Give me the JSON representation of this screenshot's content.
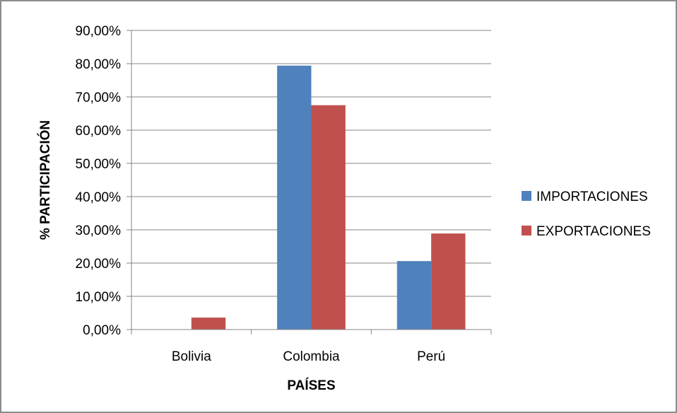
{
  "chart_data": {
    "type": "bar",
    "categories": [
      "Bolivia",
      "Colombia",
      "Perú"
    ],
    "series": [
      {
        "name": "IMPORTACIONES",
        "color": "#4f81bd",
        "values": [
          0,
          79.4,
          20.6
        ]
      },
      {
        "name": "EXPORTACIONES",
        "color": "#c0504d",
        "values": [
          3.6,
          67.5,
          28.9
        ]
      }
    ],
    "xlabel": "PAÍSES",
    "ylabel": "% PARTICIPACIÓN",
    "ylim": [
      0,
      90
    ],
    "yticks": [
      "0,00%",
      "10,00%",
      "20,00%",
      "30,00%",
      "40,00%",
      "50,00%",
      "60,00%",
      "70,00%",
      "80,00%",
      "90,00%"
    ],
    "grid": true,
    "legend_position": "right"
  }
}
